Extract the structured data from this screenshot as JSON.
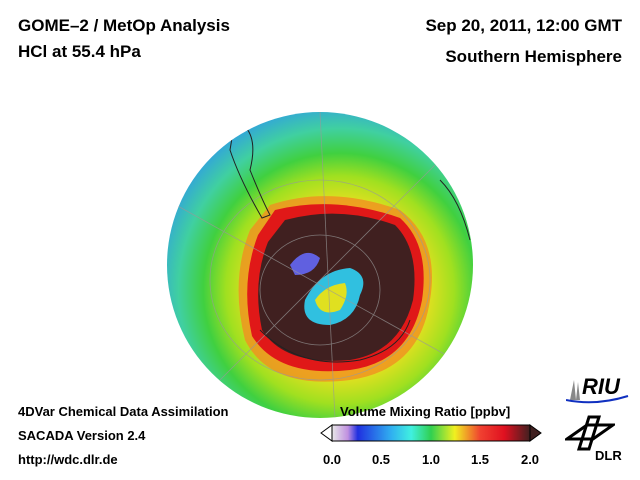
{
  "header": {
    "title_line1": "GOME–2 / MetOp Analysis",
    "title_line2": "HCl at 55.4 hPa",
    "date": "Sep 20, 2011, 12:00 GMT",
    "region": "Southern Hemisphere"
  },
  "footer": {
    "line1": "4DVar Chemical Data Assimilation",
    "line2": "SACADA Version 2.4",
    "line3": "http://wdc.dlr.de"
  },
  "colorbar": {
    "title": "Volume Mixing Ratio [ppbv]",
    "ticks": [
      "0.0",
      "0.5",
      "1.0",
      "1.5",
      "2.0"
    ],
    "min": 0,
    "max": 2
  },
  "logos": {
    "riu": "RIU",
    "dlr": "DLR"
  }
}
